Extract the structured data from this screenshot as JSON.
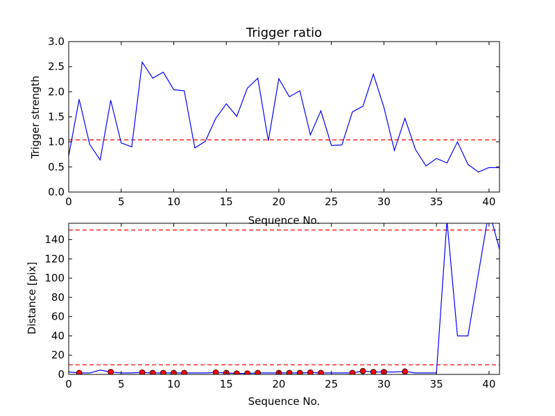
{
  "chart_data": [
    {
      "type": "line",
      "title": "Trigger ratio",
      "xlabel": "Sequence No.",
      "ylabel": "Trigger strength",
      "xlim": [
        0,
        41
      ],
      "ylim": [
        0,
        3.0
      ],
      "xticks": [
        0,
        5,
        10,
        15,
        20,
        25,
        30,
        35,
        40
      ],
      "yticks": [
        0.0,
        0.5,
        1.0,
        1.5,
        2.0,
        2.5,
        3.0
      ],
      "ytick_labels": [
        "0.0",
        "0.5",
        "1.0",
        "1.5",
        "2.0",
        "2.5",
        "3.0"
      ],
      "grid": false,
      "series": [
        {
          "color": "#0000ff",
          "x": [
            0,
            1,
            2,
            3,
            4,
            5,
            6,
            7,
            8,
            9,
            10,
            11,
            12,
            13,
            14,
            15,
            16,
            17,
            18,
            19,
            20,
            21,
            22,
            23,
            24,
            25,
            26,
            27,
            28,
            29,
            30,
            31,
            32,
            33,
            34,
            35,
            36,
            37,
            38,
            39,
            40,
            41
          ],
          "values": [
            0.72,
            1.85,
            0.95,
            0.64,
            1.83,
            0.98,
            0.9,
            2.59,
            2.27,
            2.39,
            2.04,
            2.02,
            0.88,
            1.01,
            1.47,
            1.76,
            1.51,
            2.07,
            2.27,
            1.02,
            2.26,
            1.9,
            2.02,
            1.14,
            1.62,
            0.93,
            0.94,
            1.6,
            1.71,
            2.35,
            1.69,
            0.83,
            1.47,
            0.85,
            0.52,
            0.67,
            0.58,
            1.0,
            0.55,
            0.4,
            0.49,
            0.49
          ]
        }
      ],
      "hlines": [
        {
          "y": 1.04,
          "color": "#ff0000",
          "style": "dashed"
        }
      ]
    },
    {
      "type": "line",
      "title": "",
      "xlabel": "Sequence No.",
      "ylabel": "Distance [pix]",
      "xlim": [
        0,
        41
      ],
      "ylim": [
        0,
        157
      ],
      "xticks": [
        0,
        5,
        10,
        15,
        20,
        25,
        30,
        35,
        40
      ],
      "yticks": [
        0,
        20,
        40,
        60,
        80,
        100,
        120,
        140
      ],
      "ytick_labels": [
        "0",
        "20",
        "40",
        "60",
        "80",
        "100",
        "120",
        "140"
      ],
      "grid": false,
      "series": [
        {
          "color": "#0000ff",
          "x": [
            0,
            1,
            2,
            3,
            4,
            5,
            6,
            7,
            8,
            9,
            10,
            11,
            12,
            13,
            14,
            15,
            16,
            17,
            18,
            19,
            20,
            21,
            22,
            23,
            24,
            25,
            26,
            27,
            28,
            29,
            30,
            31,
            32,
            33,
            34,
            35,
            36,
            37,
            38,
            39,
            40,
            41
          ],
          "values": [
            2.5,
            1.5,
            1.5,
            4.5,
            2.5,
            1.5,
            1.5,
            2.0,
            1.5,
            1.5,
            1.5,
            1.5,
            1.5,
            1.5,
            2.0,
            1.5,
            1.0,
            1.0,
            1.5,
            1.5,
            1.5,
            1.5,
            1.5,
            2.0,
            1.5,
            1.5,
            1.5,
            1.5,
            3.5,
            2.5,
            2.5,
            2.5,
            3.0,
            1.5,
            1.5,
            1.5,
            160,
            40,
            40,
            105,
            170,
            130
          ]
        }
      ],
      "markers": {
        "color": "#ff0000",
        "x": [
          1,
          4,
          7,
          8,
          9,
          10,
          11,
          14,
          15,
          16,
          17,
          18,
          20,
          21,
          22,
          23,
          24,
          27,
          28,
          29,
          30,
          32
        ],
        "values": [
          1.5,
          2.5,
          2.0,
          1.5,
          1.5,
          1.5,
          1.5,
          2.0,
          1.5,
          1.0,
          1.0,
          1.5,
          1.5,
          1.5,
          1.5,
          2.0,
          1.5,
          1.5,
          3.5,
          2.5,
          2.5,
          3.0
        ]
      },
      "hlines": [
        {
          "y": 150,
          "color": "#ff0000",
          "style": "dashed"
        },
        {
          "y": 10,
          "color": "#ff0000",
          "style": "dashed"
        }
      ]
    }
  ]
}
